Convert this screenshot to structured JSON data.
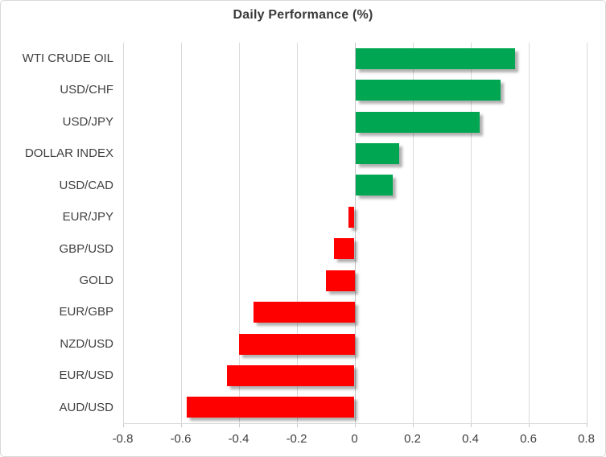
{
  "chart_data": {
    "type": "bar",
    "orientation": "horizontal",
    "title": "Daily Performance (%)",
    "categories": [
      "WTI CRUDE OIL",
      "USD/CHF",
      "USD/JPY",
      "DOLLAR INDEX",
      "USD/CAD",
      "EUR/JPY",
      "GBP/USD",
      "GOLD",
      "EUR/GBP",
      "NZD/USD",
      "EUR/USD",
      "AUD/USD"
    ],
    "values": [
      0.55,
      0.5,
      0.43,
      0.15,
      0.13,
      -0.02,
      -0.07,
      -0.1,
      -0.35,
      -0.4,
      -0.44,
      -0.58
    ],
    "xlabel": "",
    "ylabel": "",
    "xlim": [
      -0.8,
      0.8
    ],
    "x_ticks": [
      -0.8,
      -0.6,
      -0.4,
      -0.2,
      0,
      0.2,
      0.4,
      0.6,
      0.8
    ],
    "x_tick_labels": [
      "-0.8",
      "-0.6",
      "-0.4",
      "-0.2",
      "0",
      "0.2",
      "0.4",
      "0.6",
      "0.8"
    ],
    "grid": "vertical",
    "legend": "none",
    "colors": {
      "positive": "#00A651",
      "negative": "#FF0000",
      "gridline": "#D9D9D9",
      "zero_line": "#C6C6C6",
      "axis_line": "#D9D9D9",
      "tick_text": "#404040",
      "category_text": "#404040",
      "title_text": "#3A3A3A",
      "background": "#FFFFFF",
      "card_border": "#D8D8D8"
    }
  }
}
